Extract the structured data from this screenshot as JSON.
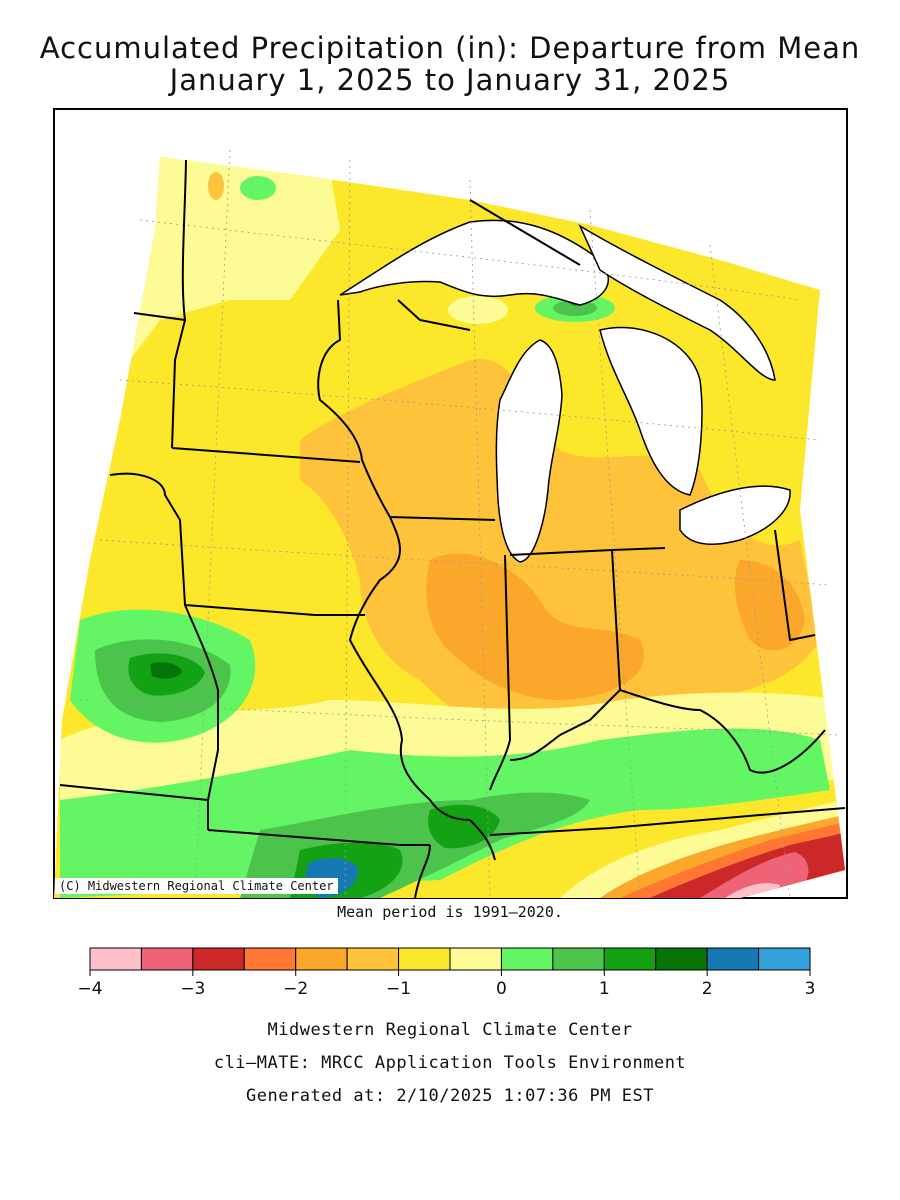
{
  "title_line1": "Accumulated Precipitation (in): Departure from Mean",
  "title_line2": "January 1, 2025 to January 31, 2025",
  "credit": "(C) Midwestern Regional Climate Center",
  "mean_period": "Mean period is 1991–2020.",
  "legend": {
    "colors": [
      "#ffc0cb",
      "#ee6377",
      "#cc2828",
      "#ff7733",
      "#fba72b",
      "#fec33b",
      "#fde72a",
      "#fdfb96",
      "#64f565",
      "#4cc34b",
      "#13a213",
      "#087408",
      "#1779b4",
      "#34a3dd"
    ],
    "ticks": [
      "−4",
      "−3",
      "−2",
      "−1",
      "0",
      "1",
      "2",
      "3"
    ]
  },
  "footer": {
    "line1": "Midwestern Regional Climate Center",
    "line2": "cli–MATE: MRCC Application Tools Environment",
    "line3": "Generated at: 2/10/2025 1:07:36 PM EST"
  }
}
